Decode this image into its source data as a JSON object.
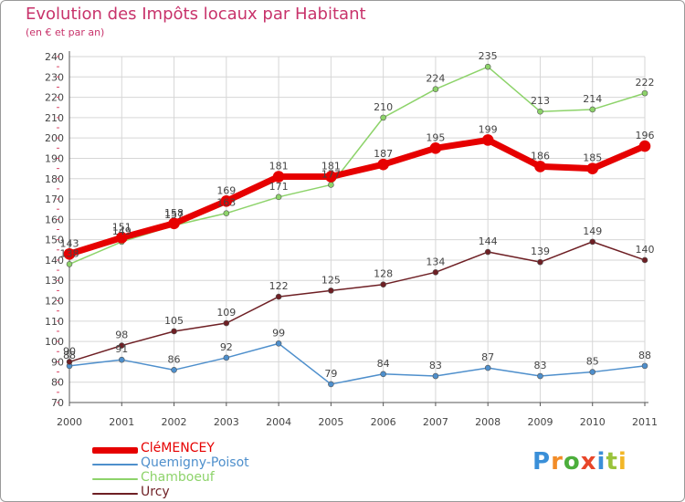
{
  "header": {
    "title": "Evolution des Impôts locaux par Habitant",
    "subtitle": "(en € et par an)"
  },
  "logo": {
    "letters": [
      "P",
      "r",
      "o",
      "x",
      "i",
      "t",
      "i"
    ],
    "letter_colors": [
      "#3a8fd8",
      "#f28c28",
      "#4cae3c",
      "#e8462a",
      "#3a8fd8",
      "#9ac33c",
      "#f2b728"
    ]
  },
  "colors": {
    "grid": "#d6d6d6",
    "axis": "#555555",
    "text": "#444444",
    "title": "#c8336b"
  },
  "chart_data": {
    "type": "line",
    "title": "Evolution des Impôts locaux par Habitant",
    "subtitle": "(en € et par an)",
    "xlabel": "",
    "ylabel": "",
    "x": [
      "2000",
      "2001",
      "2002",
      "2003",
      "2004",
      "2005",
      "2006",
      "2007",
      "2008",
      "2009",
      "2010",
      "2011"
    ],
    "ylim": [
      70,
      240
    ],
    "yticks": [
      70,
      80,
      90,
      100,
      110,
      120,
      130,
      140,
      150,
      160,
      170,
      180,
      190,
      200,
      210,
      220,
      230,
      240
    ],
    "grid": true,
    "legend_position": "bottom-left",
    "series": [
      {
        "name": "Quemigny-Poisot",
        "color": "#4e8fcc",
        "values": [
          88,
          91,
          86,
          92,
          99,
          79,
          84,
          83,
          87,
          83,
          85,
          88
        ]
      },
      {
        "name": "Chamboeuf",
        "color": "#8dd36a",
        "values": [
          138,
          149,
          157,
          163,
          171,
          177,
          210,
          224,
          235,
          213,
          214,
          222
        ]
      },
      {
        "name": "Urcy",
        "color": "#6e1f24",
        "values": [
          90,
          98,
          105,
          109,
          122,
          125,
          128,
          134,
          144,
          139,
          149,
          140
        ]
      },
      {
        "name": "CléMENCEY",
        "color": "#e60000",
        "values": [
          143,
          151,
          158,
          169,
          181,
          181,
          187,
          195,
          199,
          186,
          185,
          196
        ]
      }
    ],
    "labels": {
      "Quemigny-Poisot": [
        "88",
        "91",
        "86",
        "92",
        "99",
        "79",
        "84",
        "83",
        "87",
        "83",
        "85",
        "88"
      ],
      "Chamboeuf": [
        "138",
        "149",
        "157",
        "163",
        "171",
        "177",
        "210",
        "224",
        "235",
        "213",
        "214",
        "222"
      ],
      "Urcy": [
        "90",
        "98",
        "105",
        "109",
        "122",
        "125",
        "128",
        "134",
        "144",
        "139",
        "149",
        "140"
      ],
      "CléMENCEY": [
        "143",
        "151",
        "158",
        "169",
        "181",
        "181",
        "187",
        "195",
        "199",
        "186",
        "185",
        "196"
      ]
    },
    "legend": [
      "CléMENCEY",
      "Quemigny-Poisot",
      "Chamboeuf",
      "Urcy"
    ]
  }
}
